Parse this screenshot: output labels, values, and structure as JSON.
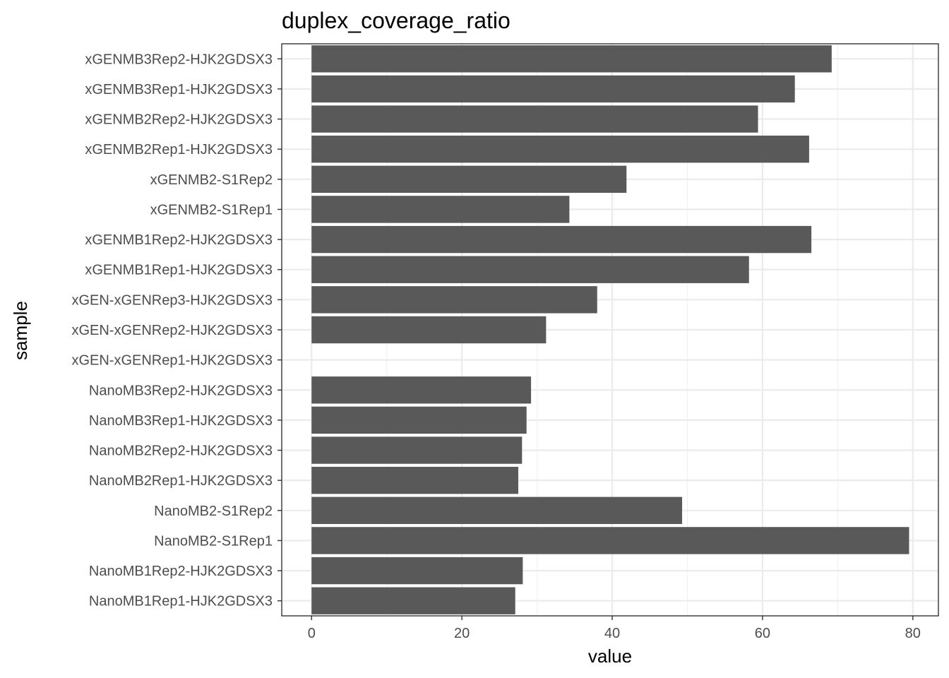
{
  "chart_data": {
    "type": "bar",
    "orientation": "horizontal",
    "title": "duplex_coverage_ratio",
    "xlabel": "value",
    "ylabel": "sample",
    "xlim": [
      -3.97,
      83.4
    ],
    "xticks": [
      0,
      20,
      40,
      60,
      80
    ],
    "grid": true,
    "bar_color": "#595959",
    "categories": [
      "xGENMB3Rep2-HJK2GDSX3",
      "xGENMB3Rep1-HJK2GDSX3",
      "xGENMB2Rep2-HJK2GDSX3",
      "xGENMB2Rep1-HJK2GDSX3",
      "xGENMB2-S1Rep2",
      "xGENMB2-S1Rep1",
      "xGENMB1Rep2-HJK2GDSX3",
      "xGENMB1Rep1-HJK2GDSX3",
      "xGEN-xGENRep3-HJK2GDSX3",
      "xGEN-xGENRep2-HJK2GDSX3",
      "xGEN-xGENRep1-HJK2GDSX3",
      "NanoMB3Rep2-HJK2GDSX3",
      "NanoMB3Rep1-HJK2GDSX3",
      "NanoMB2Rep2-HJK2GDSX3",
      "NanoMB2Rep1-HJK2GDSX3",
      "NanoMB2-S1Rep2",
      "NanoMB2-S1Rep1",
      "NanoMB1Rep2-HJK2GDSX3",
      "NanoMB1Rep1-HJK2GDSX3"
    ],
    "values": [
      69.2,
      64.3,
      59.4,
      66.2,
      41.9,
      34.3,
      66.5,
      58.2,
      38.0,
      31.2,
      null,
      29.2,
      28.6,
      28.0,
      27.5,
      49.3,
      79.5,
      28.1,
      27.1
    ]
  }
}
